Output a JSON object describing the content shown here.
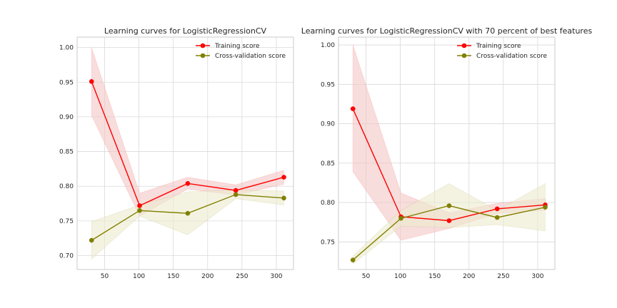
{
  "chart_data": [
    {
      "type": "line",
      "title": "Learning curves for LogisticRegressionCV",
      "xlabel": "",
      "ylabel": "",
      "xlim": [
        10,
        325
      ],
      "ylim": [
        0.68,
        1.015
      ],
      "xticks": [
        50,
        100,
        150,
        200,
        250,
        300
      ],
      "yticks": [
        0.7,
        0.75,
        0.8,
        0.85,
        0.9,
        0.95,
        1.0
      ],
      "grid": true,
      "legend": "top-right",
      "x": [
        31,
        101,
        171,
        241,
        311
      ],
      "series": [
        {
          "name": "Training score",
          "color": "#ff0000",
          "band_color": "#f4c7c7",
          "values": [
            0.951,
            0.772,
            0.804,
            0.794,
            0.813
          ],
          "lower": [
            0.902,
            0.757,
            0.796,
            0.787,
            0.803
          ],
          "upper": [
            1.0,
            0.79,
            0.813,
            0.802,
            0.823
          ]
        },
        {
          "name": "Cross-validation score",
          "color": "#808000",
          "band_color": "#ecebcf",
          "values": [
            0.722,
            0.765,
            0.761,
            0.788,
            0.783
          ],
          "lower": [
            0.695,
            0.757,
            0.73,
            0.782,
            0.773
          ],
          "upper": [
            0.749,
            0.773,
            0.792,
            0.795,
            0.793
          ]
        }
      ]
    },
    {
      "type": "line",
      "title": "Learning curves for LogisticRegressionCV with 70 percent of best features",
      "xlabel": "",
      "ylabel": "",
      "xlim": [
        10,
        325
      ],
      "ylim": [
        0.715,
        1.01
      ],
      "xticks": [
        50,
        100,
        150,
        200,
        250,
        300
      ],
      "yticks": [
        0.75,
        0.8,
        0.85,
        0.9,
        0.95,
        1.0
      ],
      "grid": true,
      "legend": "top-right",
      "x": [
        31,
        101,
        171,
        241,
        311
      ],
      "series": [
        {
          "name": "Training score",
          "color": "#ff0000",
          "band_color": "#f4c7c7",
          "values": [
            0.919,
            0.782,
            0.777,
            0.792,
            0.797
          ],
          "lower": [
            0.839,
            0.752,
            0.767,
            0.786,
            0.79
          ],
          "upper": [
            1.0,
            0.812,
            0.787,
            0.799,
            0.805
          ]
        },
        {
          "name": "Cross-validation score",
          "color": "#808000",
          "band_color": "#ecebcf",
          "values": [
            0.727,
            0.78,
            0.796,
            0.781,
            0.794
          ],
          "lower": [
            0.722,
            0.77,
            0.768,
            0.772,
            0.764
          ],
          "upper": [
            0.732,
            0.79,
            0.824,
            0.79,
            0.824
          ]
        }
      ]
    }
  ]
}
